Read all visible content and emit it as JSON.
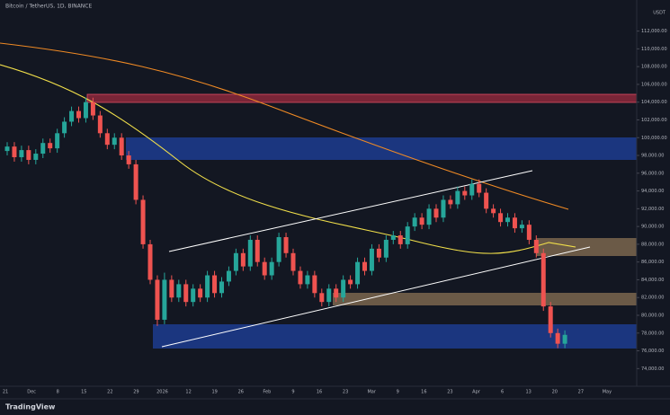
{
  "header": {
    "title": "Bitcoin / TetherUS, 1D, BINANCE",
    "currency": "USDT",
    "brand": "TradingView"
  },
  "chart_data": {
    "type": "candlestick",
    "up_color": "#26a69a",
    "down_color": "#ef5350",
    "ylim": [
      71000,
      115500
    ],
    "yticks": [
      {
        "value": 72000,
        "label": "72,000.00"
      },
      {
        "value": 74000,
        "label": "74,000.00"
      },
      {
        "value": 76000,
        "label": "76,000.00"
      },
      {
        "value": 78000,
        "label": "78,000.00"
      },
      {
        "value": 80000,
        "label": "80,000.00"
      },
      {
        "value": 82000,
        "label": "82,000.00"
      },
      {
        "value": 84000,
        "label": "84,000.00"
      },
      {
        "value": 86000,
        "label": "86,000.00"
      },
      {
        "value": 88000,
        "label": "88,000.00"
      },
      {
        "value": 90000,
        "label": "90,000.00"
      },
      {
        "value": 92000,
        "label": "92,000.00"
      },
      {
        "value": 94000,
        "label": "94,000.00"
      },
      {
        "value": 96000,
        "label": "96,000.00"
      },
      {
        "value": 98000,
        "label": "98,000.00"
      },
      {
        "value": 100000,
        "label": "100,000.00"
      },
      {
        "value": 102000,
        "label": "102,000.00"
      },
      {
        "value": 104000,
        "label": "104,000.00"
      },
      {
        "value": 106000,
        "label": "106,000.00"
      },
      {
        "value": 108000,
        "label": "108,000.00"
      },
      {
        "value": 110000,
        "label": "110,000.00"
      },
      {
        "value": 112000,
        "label": "112,000.00"
      }
    ],
    "x_labels": [
      "21",
      "Dec",
      "8",
      "15",
      "22",
      "29",
      "2026",
      "12",
      "19",
      "26",
      "Feb",
      "9",
      "16",
      "23",
      "Mar",
      "9",
      "16",
      "23",
      "Apr",
      "6",
      "13",
      "20",
      "27",
      "May"
    ],
    "candles": [
      [
        98500,
        99500,
        98000,
        99000
      ],
      [
        99000,
        99500,
        97300,
        97800
      ],
      [
        97800,
        99100,
        97300,
        98600
      ],
      [
        98600,
        99100,
        97000,
        97500
      ],
      [
        97500,
        98700,
        97000,
        98200
      ],
      [
        98200,
        99900,
        97700,
        99400
      ],
      [
        99400,
        99900,
        98300,
        98800
      ],
      [
        98800,
        101000,
        98300,
        100500
      ],
      [
        100500,
        102300,
        100000,
        101800
      ],
      [
        101800,
        103500,
        101300,
        103000
      ],
      [
        103000,
        103500,
        101700,
        102200
      ],
      [
        102200,
        104500,
        101700,
        104000
      ],
      [
        104000,
        104500,
        102000,
        102500
      ],
      [
        102500,
        103000,
        100000,
        100500
      ],
      [
        100500,
        101000,
        98700,
        99200
      ],
      [
        99200,
        100500,
        98700,
        100000
      ],
      [
        100000,
        100500,
        97500,
        98000
      ],
      [
        98000,
        98500,
        96500,
        97000
      ],
      [
        97000,
        97500,
        92500,
        93000
      ],
      [
        93000,
        93500,
        87500,
        88000
      ],
      [
        88000,
        88500,
        83500,
        84000
      ],
      [
        84000,
        84500,
        78800,
        79500
      ],
      [
        79500,
        84800,
        79000,
        84000
      ],
      [
        84000,
        84500,
        81500,
        82000
      ],
      [
        82000,
        84000,
        81500,
        83500
      ],
      [
        83500,
        84000,
        81000,
        81500
      ],
      [
        81500,
        83500,
        81000,
        83000
      ],
      [
        83000,
        83500,
        81500,
        82000
      ],
      [
        82000,
        85000,
        81500,
        84500
      ],
      [
        84500,
        85000,
        82000,
        82500
      ],
      [
        82500,
        84300,
        82000,
        83800
      ],
      [
        83800,
        85500,
        83300,
        85000
      ],
      [
        85000,
        87500,
        84500,
        87000
      ],
      [
        87000,
        87500,
        85000,
        85500
      ],
      [
        85500,
        89000,
        85000,
        88500
      ],
      [
        88500,
        89000,
        85500,
        86000
      ],
      [
        86000,
        86500,
        84000,
        84500
      ],
      [
        84500,
        86500,
        84000,
        86000
      ],
      [
        86000,
        89300,
        85500,
        88800
      ],
      [
        88800,
        89300,
        86500,
        87000
      ],
      [
        87000,
        87500,
        84500,
        85000
      ],
      [
        85000,
        85500,
        83000,
        83500
      ],
      [
        83500,
        85000,
        83000,
        84500
      ],
      [
        84500,
        85000,
        82000,
        82500
      ],
      [
        82500,
        83000,
        81000,
        81500
      ],
      [
        81500,
        83500,
        81000,
        83000
      ],
      [
        83000,
        83500,
        81500,
        82000
      ],
      [
        82000,
        84500,
        81500,
        84000
      ],
      [
        84000,
        84500,
        83000,
        83500
      ],
      [
        83500,
        86500,
        83000,
        86000
      ],
      [
        86000,
        86500,
        84500,
        85000
      ],
      [
        85000,
        88000,
        84500,
        87500
      ],
      [
        87500,
        88000,
        86000,
        86500
      ],
      [
        86500,
        89000,
        86000,
        88500
      ],
      [
        88500,
        89500,
        88000,
        89000
      ],
      [
        89000,
        89500,
        87500,
        88000
      ],
      [
        88000,
        90500,
        87500,
        90000
      ],
      [
        90000,
        91500,
        89500,
        91000
      ],
      [
        91000,
        91500,
        89700,
        90200
      ],
      [
        90200,
        92500,
        89700,
        92000
      ],
      [
        92000,
        92500,
        90500,
        91000
      ],
      [
        91000,
        93500,
        90500,
        93000
      ],
      [
        93000,
        93500,
        92000,
        92500
      ],
      [
        92500,
        94500,
        92000,
        94000
      ],
      [
        94000,
        94500,
        93000,
        93500
      ],
      [
        93500,
        95300,
        93000,
        94800
      ],
      [
        94800,
        95300,
        93300,
        93800
      ],
      [
        93800,
        94300,
        91500,
        92000
      ],
      [
        92000,
        92500,
        91000,
        91500
      ],
      [
        91500,
        92000,
        90000,
        90500
      ],
      [
        90500,
        91500,
        90000,
        91000
      ],
      [
        91000,
        91500,
        89300,
        89800
      ],
      [
        89800,
        90700,
        89300,
        90200
      ],
      [
        90200,
        90700,
        88000,
        88500
      ],
      [
        88500,
        89000,
        86500,
        87000
      ],
      [
        87000,
        87500,
        80500,
        81000
      ],
      [
        81000,
        81500,
        77500,
        78000
      ],
      [
        78000,
        78500,
        76300,
        76800
      ],
      [
        76800,
        78300,
        76300,
        77800
      ]
    ]
  }
}
